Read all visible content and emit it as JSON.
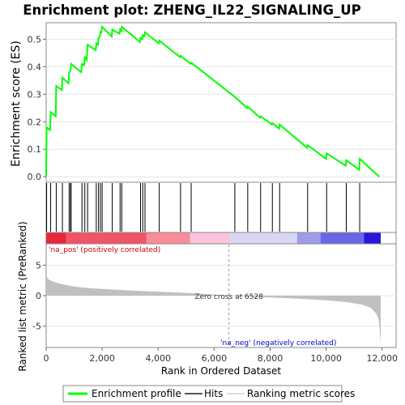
{
  "chart_data": {
    "type": "line",
    "title": "Enrichment plot: ZHENG_IL22_SIGNALING_UP",
    "es_panel": {
      "ylabel": "Enrichment score (ES)",
      "ylim": [
        -0.02,
        0.56
      ],
      "yticks": [
        0.0,
        0.1,
        0.2,
        0.3,
        0.4,
        0.5
      ],
      "ytick_labels": [
        "0.0",
        "0.1",
        "0.2",
        "0.3",
        "0.4",
        "0.5"
      ],
      "line_color": "#00ff00",
      "peaks": [
        [
          0,
          0.0
        ],
        [
          15,
          0.18
        ],
        [
          140,
          0.17
        ],
        [
          160,
          0.235
        ],
        [
          340,
          0.22
        ],
        [
          360,
          0.33
        ],
        [
          560,
          0.315
        ],
        [
          580,
          0.36
        ],
        [
          800,
          0.34
        ],
        [
          820,
          0.375
        ],
        [
          870,
          0.39
        ],
        [
          890,
          0.41
        ],
        [
          1250,
          0.38
        ],
        [
          1280,
          0.41
        ],
        [
          1350,
          0.405
        ],
        [
          1380,
          0.435
        ],
        [
          1450,
          0.425
        ],
        [
          1480,
          0.48
        ],
        [
          1770,
          0.46
        ],
        [
          1790,
          0.485
        ],
        [
          1850,
          0.48
        ],
        [
          1870,
          0.505
        ],
        [
          1920,
          0.51
        ],
        [
          1940,
          0.525
        ],
        [
          1970,
          0.525
        ],
        [
          2000,
          0.545
        ],
        [
          2340,
          0.51
        ],
        [
          2360,
          0.535
        ],
        [
          2620,
          0.52
        ],
        [
          2640,
          0.535
        ],
        [
          2680,
          0.53
        ],
        [
          2700,
          0.545
        ],
        [
          3350,
          0.49
        ],
        [
          3370,
          0.505
        ],
        [
          3430,
          0.5
        ],
        [
          3450,
          0.515
        ],
        [
          3510,
          0.51
        ],
        [
          3530,
          0.525
        ],
        [
          4020,
          0.485
        ],
        [
          4040,
          0.495
        ],
        [
          4780,
          0.435
        ],
        [
          4800,
          0.44
        ],
        [
          5160,
          0.41
        ],
        [
          5180,
          0.415
        ],
        [
          6740,
          0.29
        ],
        [
          7180,
          0.25
        ],
        [
          7200,
          0.255
        ],
        [
          7640,
          0.215
        ],
        [
          7660,
          0.22
        ],
        [
          8060,
          0.19
        ],
        [
          8080,
          0.195
        ],
        [
          8320,
          0.175
        ],
        [
          8340,
          0.19
        ],
        [
          9320,
          0.105
        ],
        [
          9340,
          0.115
        ],
        [
          10000,
          0.065
        ],
        [
          10020,
          0.085
        ],
        [
          10700,
          0.04
        ],
        [
          10720,
          0.06
        ],
        [
          11180,
          0.025
        ],
        [
          11200,
          0.065
        ],
        [
          11900,
          0.0
        ]
      ]
    },
    "hits": [
      15,
      160,
      360,
      580,
      820,
      870,
      890,
      1280,
      1380,
      1480,
      1790,
      1870,
      1940,
      2000,
      2360,
      2640,
      2700,
      3370,
      3450,
      3530,
      4040,
      4800,
      5180,
      6740,
      7200,
      7660,
      8080,
      8340,
      9340,
      10020,
      10720,
      11200
    ],
    "metric_panel": {
      "ylabel": "Ranked list metric (PreRanked)",
      "ylim": [
        -8.5,
        8.5
      ],
      "yticks": [
        -5,
        0,
        5
      ],
      "ytick_labels": [
        "-5",
        "0",
        "5"
      ],
      "profile": [
        [
          0,
          3.2
        ],
        [
          100,
          2.6
        ],
        [
          300,
          2.2
        ],
        [
          600,
          1.85
        ],
        [
          1000,
          1.5
        ],
        [
          1500,
          1.25
        ],
        [
          2000,
          1.1
        ],
        [
          3000,
          0.85
        ],
        [
          4000,
          0.65
        ],
        [
          5000,
          0.45
        ],
        [
          6000,
          0.18
        ],
        [
          6528,
          0.0
        ],
        [
          7000,
          -0.12
        ],
        [
          8000,
          -0.3
        ],
        [
          9000,
          -0.5
        ],
        [
          10000,
          -0.75
        ],
        [
          10800,
          -1.1
        ],
        [
          11300,
          -1.5
        ],
        [
          11600,
          -2.0
        ],
        [
          11800,
          -3.0
        ],
        [
          11880,
          -4.0
        ],
        [
          11950,
          -7.8
        ]
      ],
      "zero_cross_label": "Zero cross at 6528",
      "zero_cross": 6528,
      "pos_label": "'na_pos' (positively correlated)",
      "neg_label": "'na_neg' (negatively correlated)"
    },
    "x_axis": {
      "xlabel": "Rank in Ordered Dataset",
      "xlim": [
        0,
        12500
      ],
      "xticks": [
        0,
        2000,
        4000,
        6000,
        8000,
        10000,
        12000
      ],
      "xtick_labels": [
        "0",
        "2,000",
        "4,000",
        "6,000",
        "8,000",
        "10,000",
        "12,000"
      ],
      "n": 11950
    },
    "legend": {
      "placement": "bottom",
      "items": [
        {
          "label": "Enrichment profile",
          "color": "#00ff00"
        },
        {
          "label": "Hits",
          "color": "#555555"
        },
        {
          "label": "Ranking metric scores",
          "color": "#dddddd"
        }
      ]
    },
    "colors": {
      "pos_label": "#cc0000",
      "neg_label": "#0000cc",
      "metric_fill": "#c0c0c0"
    }
  }
}
